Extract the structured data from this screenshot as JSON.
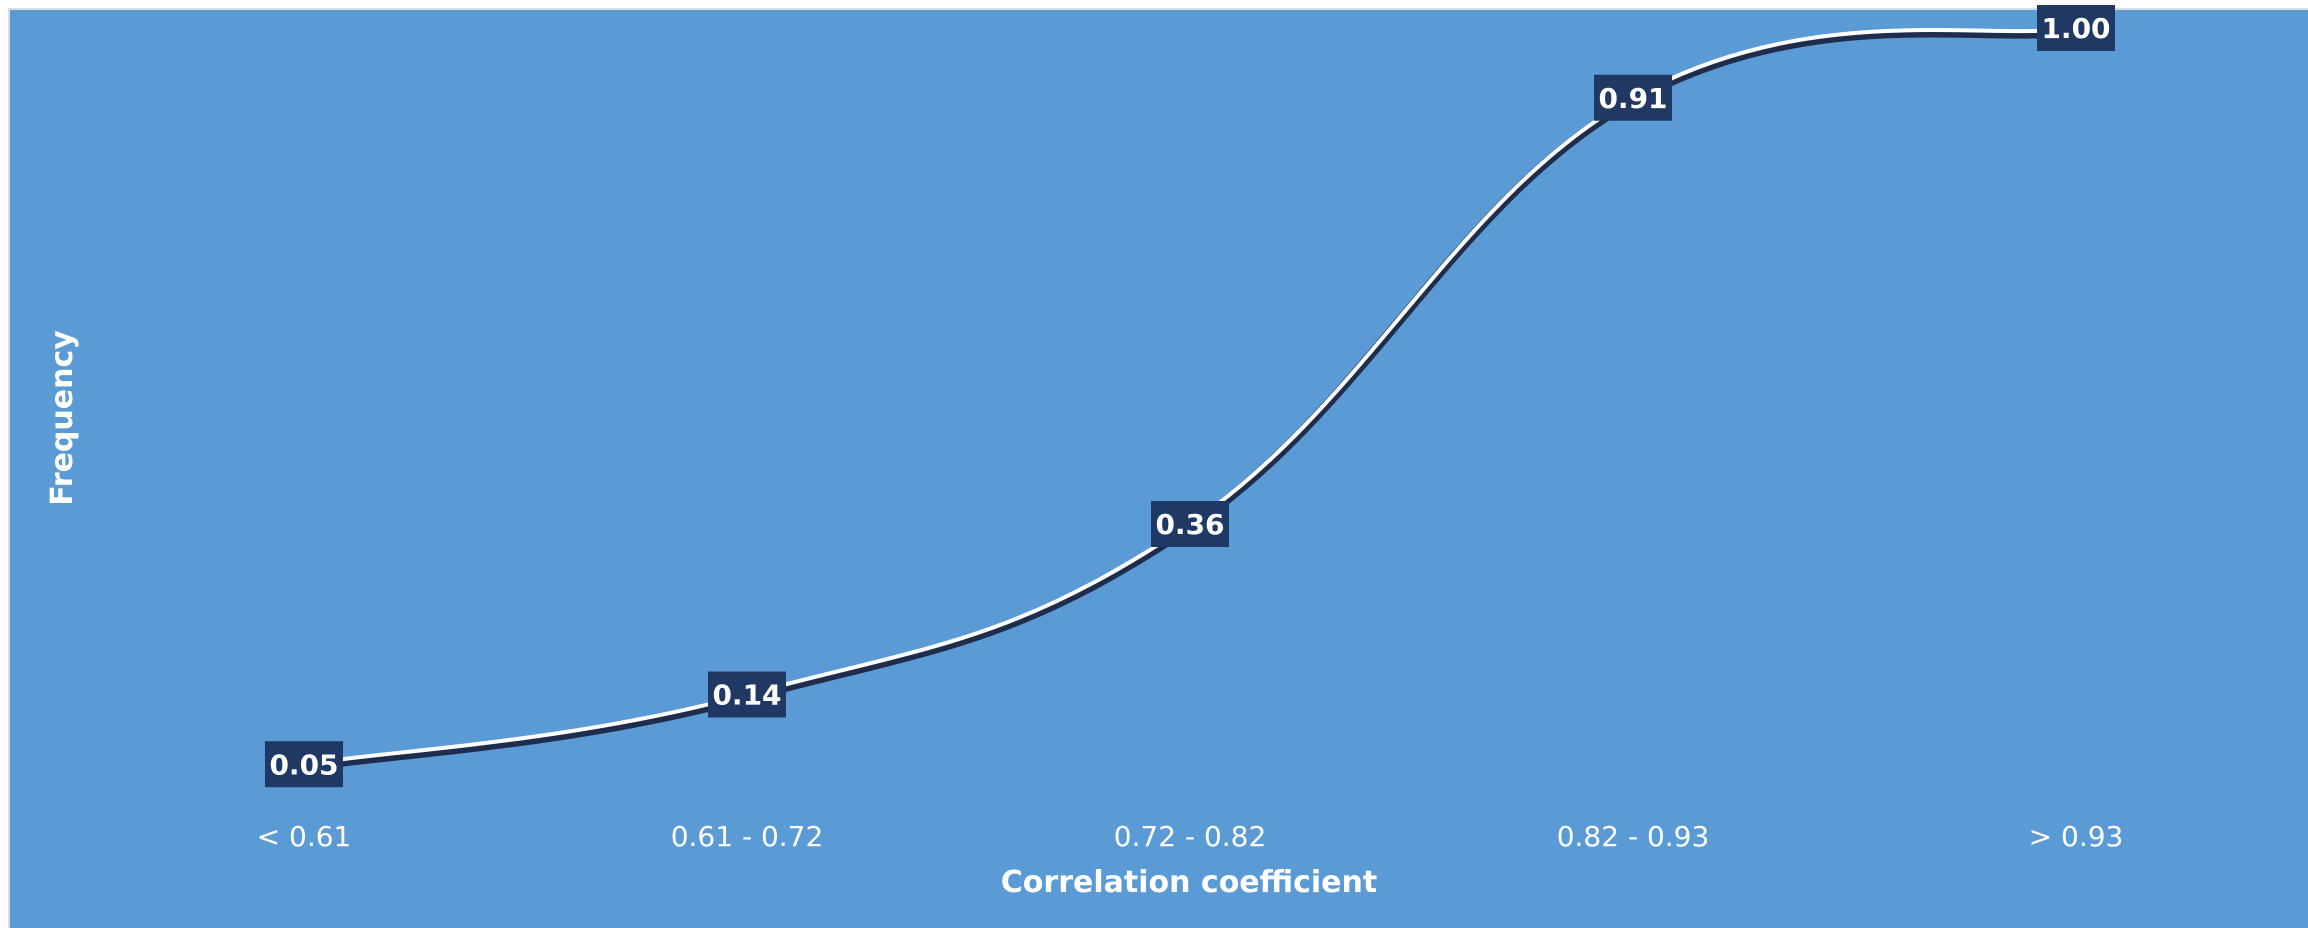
{
  "chart_data": {
    "type": "line",
    "categories": [
      "< 0.61",
      "0.61 - 0.72",
      "0.72 - 0.82",
      "0.82 - 0.93",
      "> 0.93"
    ],
    "series": [
      {
        "values": [
          0.05,
          0.14,
          0.36,
          0.91,
          1.0
        ],
        "data_labels": [
          "0.05",
          "0.14",
          "0.36",
          "0.91",
          "1.00"
        ]
      }
    ],
    "xlabel": "Correlation coefficient",
    "ylabel": "Frequency",
    "ylim": [
      0,
      1
    ],
    "smooth": true,
    "grid": false,
    "legend": "none",
    "colors": {
      "background": "#5b9bd5",
      "line": "#ffffff",
      "line_shadow": "#1f2d4d",
      "label_box": "#1f3864",
      "text": "#ffffff"
    }
  }
}
